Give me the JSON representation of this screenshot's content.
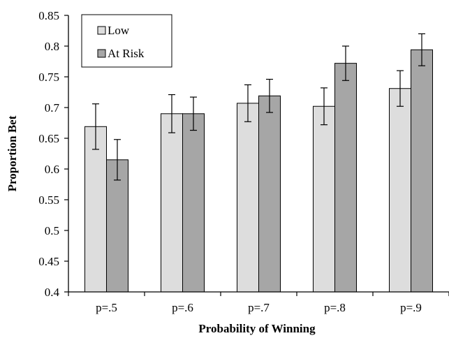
{
  "chart_data": {
    "type": "bar",
    "categories": [
      "p=.5",
      "p=.6",
      "p=.7",
      "p=.8",
      "p=.9"
    ],
    "series": [
      {
        "name": "Low",
        "color": "#dddddd",
        "values": [
          0.669,
          0.69,
          0.707,
          0.702,
          0.731
        ],
        "error": [
          0.037,
          0.031,
          0.03,
          0.03,
          0.029
        ]
      },
      {
        "name": "At Risk",
        "color": "#a6a6a6",
        "values": [
          0.615,
          0.69,
          0.719,
          0.772,
          0.794
        ],
        "error": [
          0.033,
          0.027,
          0.027,
          0.028,
          0.026
        ]
      }
    ],
    "xlabel": "Probability of Winning",
    "ylabel": "Proportion Bet",
    "ylim": [
      0.4,
      0.85
    ],
    "yticks": [
      "0.4",
      "0.45",
      "0.5",
      "0.55",
      "0.6",
      "0.65",
      "0.7",
      "0.75",
      "0.8",
      "0.85"
    ],
    "grid": false,
    "legend_position": "top-left"
  }
}
